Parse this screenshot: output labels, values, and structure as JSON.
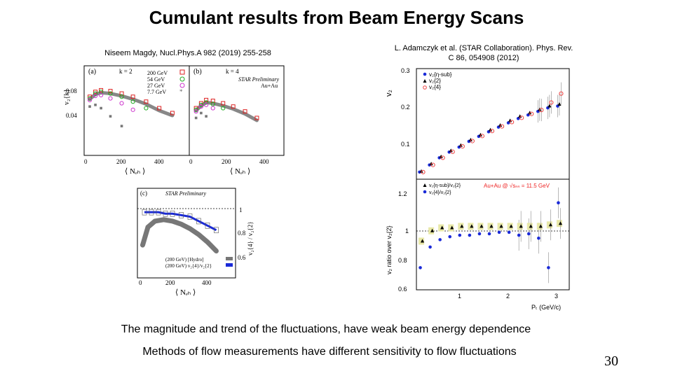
{
  "slide": {
    "title": "Cumulant results from Beam Energy Scans",
    "citation_left": "Niseem Magdy, Nucl.Phys.A 982 (2019) 255-258",
    "citation_right_line1": "L. Adamczyk et al. (STAR Collaboration). Phys. Rev.",
    "citation_right_line2": "C 86, 054908 (2012)",
    "caption_1": "The magnitude and trend of the fluctuations, have weak beam energy dependence",
    "caption_2": "Methods of flow measurements have different sensitivity to flow fluctuations",
    "page_number": "30"
  },
  "fig_a": {
    "panel_a_label": "(a)",
    "panel_b_label": "(b)",
    "k2_label": "k = 2",
    "k4_label": "k = 4",
    "star_prelim": "STAR Preliminary",
    "system": "Au+Au",
    "ylabel": "v₂{k}",
    "xlabel": "⟨ Nₑₕ ⟩",
    "yticks": [
      "0.08",
      "0.04"
    ],
    "xticks_a": [
      "0",
      "200",
      "400"
    ],
    "xticks_b": [
      "0",
      "200",
      "400"
    ],
    "legend": [
      "200 GeV",
      "54 GeV",
      "27 GeV",
      "7.7 GeV"
    ]
  },
  "fig_c": {
    "panel_label": "(c)",
    "star_prelim": "STAR Preliminary",
    "ylabel": "v₂{4} / v₂{2}",
    "xlabel": "⟨ Nₑₕ ⟩",
    "yticks": [
      "1",
      "0.8",
      "0.6"
    ],
    "xticks": [
      "0",
      "200",
      "400"
    ],
    "legend_1": "(200 GeV) [Hydro]",
    "legend_2": "(200 GeV) v₂{4}/v₂{2}"
  },
  "fig_r": {
    "top_ylabel": "v₂",
    "top_yticks": [
      "0.3",
      "0.2",
      "0.1"
    ],
    "legend_top": [
      "v₂{η-sub}",
      "v₂{2}",
      "v₂{4}"
    ],
    "bottom_ylabel": "v₂ ratio over v₂{2}",
    "bottom_yticks": [
      "1.2",
      "1",
      "0.8",
      "0.6"
    ],
    "legend_bottom": [
      "v₂{η-sub}/v₂{2}",
      "v₂{4}/v₂{2}"
    ],
    "system_label": "Au+Au @ √sₙₙ = 11.5 GeV",
    "xticks": [
      "1",
      "2",
      "3"
    ],
    "xlabel": "Pₜ (GeV/c)"
  },
  "chart_data": [
    {
      "type": "line",
      "title": "",
      "subplot": "(a) k = 2",
      "xlabel": "⟨ Nₑₕ ⟩",
      "ylabel": "v₂{k}",
      "xlim": [
        0,
        560
      ],
      "ylim": [
        0,
        0.11
      ],
      "series": [
        {
          "name": "200 GeV",
          "x": [
            30,
            60,
            90,
            140,
            200,
            260,
            330,
            400,
            470
          ],
          "y": [
            0.072,
            0.078,
            0.08,
            0.079,
            0.076,
            0.072,
            0.066,
            0.058,
            0.052
          ]
        },
        {
          "name": "54 GeV",
          "x": [
            30,
            60,
            90,
            140,
            200,
            260,
            330
          ],
          "y": [
            0.07,
            0.076,
            0.078,
            0.076,
            0.072,
            0.066,
            0.058
          ]
        },
        {
          "name": "27 GeV",
          "x": [
            30,
            60,
            90,
            140,
            200,
            260
          ],
          "y": [
            0.068,
            0.073,
            0.074,
            0.07,
            0.064,
            0.056
          ]
        },
        {
          "name": "7.7 GeV",
          "x": [
            30,
            60,
            90,
            140,
            200
          ],
          "y": [
            0.06,
            0.062,
            0.058,
            0.048,
            0.036
          ]
        }
      ]
    },
    {
      "type": "line",
      "title": "",
      "subplot": "(b) k = 4",
      "xlabel": "⟨ Nₑₕ ⟩",
      "ylabel": "v₂{k}",
      "xlim": [
        0,
        560
      ],
      "ylim": [
        0,
        0.11
      ],
      "series": [
        {
          "name": "200 GeV",
          "x": [
            40,
            70,
            100,
            140,
            200,
            260,
            330,
            400
          ],
          "y": [
            0.058,
            0.064,
            0.068,
            0.067,
            0.064,
            0.06,
            0.054,
            0.046
          ]
        },
        {
          "name": "54 GeV",
          "x": [
            40,
            70,
            100,
            140,
            200
          ],
          "y": [
            0.056,
            0.062,
            0.065,
            0.063,
            0.058
          ]
        },
        {
          "name": "27 GeV",
          "x": [
            40,
            70,
            100,
            140
          ],
          "y": [
            0.054,
            0.06,
            0.062,
            0.058
          ]
        },
        {
          "name": "7.7 GeV",
          "x": [
            40,
            70,
            100
          ],
          "y": [
            0.046,
            0.052,
            0.048
          ]
        }
      ]
    },
    {
      "type": "line",
      "title": "",
      "subplot": "(c)",
      "xlabel": "⟨ Nₑₕ ⟩",
      "ylabel": "v₂{4} / v₂{2}",
      "xlim": [
        0,
        560
      ],
      "ylim": [
        0.5,
        1.1
      ],
      "series": [
        {
          "name": "(200 GeV) [Hydro]",
          "x": [
            30,
            60,
            100,
            150,
            200,
            250,
            300,
            350,
            400,
            450
          ],
          "y": [
            0.72,
            0.84,
            0.88,
            0.89,
            0.88,
            0.86,
            0.83,
            0.79,
            0.74,
            0.68
          ]
        },
        {
          "name": "(200 GeV) v₂{4}/v₂{2}",
          "x": [
            40,
            80,
            120,
            160,
            200,
            250,
            300,
            350,
            400,
            450
          ],
          "y": [
            0.94,
            0.94,
            0.94,
            0.93,
            0.93,
            0.92,
            0.91,
            0.88,
            0.85,
            0.82
          ]
        }
      ]
    },
    {
      "type": "scatter",
      "title": "",
      "subplot": "top",
      "xlabel": "Pₜ (GeV/c)",
      "ylabel": "v₂",
      "xlim": [
        0.1,
        3.2
      ],
      "ylim": [
        0,
        0.31
      ],
      "series": [
        {
          "name": "v₂{η-sub}",
          "x": [
            0.2,
            0.4,
            0.6,
            0.8,
            1.0,
            1.2,
            1.4,
            1.6,
            1.8,
            2.0,
            2.2,
            2.4,
            2.6,
            2.8,
            3.0
          ],
          "y": [
            0.02,
            0.04,
            0.06,
            0.076,
            0.09,
            0.106,
            0.12,
            0.133,
            0.146,
            0.158,
            0.17,
            0.18,
            0.19,
            0.2,
            0.205
          ]
        },
        {
          "name": "v₂{2}",
          "x": [
            0.2,
            0.4,
            0.6,
            0.8,
            1.0,
            1.2,
            1.4,
            1.6,
            1.8,
            2.0,
            2.2,
            2.4,
            2.6,
            2.8,
            3.0
          ],
          "y": [
            0.022,
            0.043,
            0.063,
            0.08,
            0.095,
            0.11,
            0.124,
            0.138,
            0.151,
            0.164,
            0.176,
            0.186,
            0.195,
            0.205,
            0.21
          ]
        },
        {
          "name": "v₂{4}",
          "x": [
            0.2,
            0.4,
            0.6,
            0.8,
            1.0,
            1.2,
            1.4,
            1.6,
            1.8,
            2.0,
            2.2,
            2.4,
            2.6,
            2.8,
            3.0
          ],
          "y": [
            0.02,
            0.04,
            0.06,
            0.077,
            0.092,
            0.107,
            0.121,
            0.135,
            0.148,
            0.16,
            0.172,
            0.183,
            0.194,
            0.215,
            0.24
          ]
        }
      ]
    },
    {
      "type": "scatter",
      "title": "",
      "subplot": "bottom",
      "xlabel": "Pₜ (GeV/c)",
      "ylabel": "v₂ ratio over v₂{2}",
      "xlim": [
        0.1,
        3.2
      ],
      "ylim": [
        0.6,
        1.35
      ],
      "series": [
        {
          "name": "v₂{η-sub}/v₂{2}",
          "x": [
            0.2,
            0.4,
            0.6,
            0.8,
            1.0,
            1.2,
            1.4,
            1.6,
            1.8,
            2.0,
            2.2,
            2.4,
            2.6,
            2.8,
            3.0
          ],
          "y": [
            0.75,
            0.89,
            0.94,
            0.96,
            0.97,
            0.97,
            0.98,
            0.98,
            0.99,
            0.99,
            0.97,
            0.98,
            0.95,
            0.75,
            1.19
          ]
        },
        {
          "name": "v₂{4}/v₂{2}",
          "x": [
            0.2,
            0.4,
            0.6,
            0.8,
            1.0,
            1.2,
            1.4,
            1.6,
            1.8,
            2.0,
            2.2,
            2.4,
            2.6,
            2.8,
            3.0
          ],
          "y": [
            0.93,
            1.0,
            1.02,
            1.02,
            1.03,
            1.03,
            1.03,
            1.03,
            1.03,
            1.03,
            1.03,
            1.03,
            1.03,
            1.04,
            1.05
          ]
        }
      ]
    }
  ]
}
